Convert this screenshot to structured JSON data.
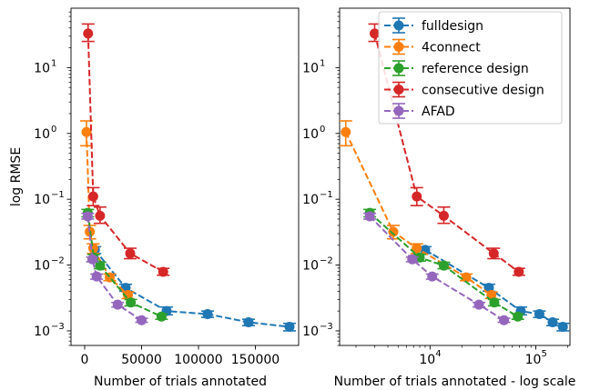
{
  "chart_data": [
    {
      "type": "line",
      "xscale": "linear",
      "yscale": "log",
      "xlabel": "Number of trials annotated",
      "ylabel": "log RMSE",
      "xlim": [
        -12000,
        188000
      ],
      "ylim": [
        0.0006,
        80
      ],
      "xticks": [
        0,
        50000,
        100000,
        150000
      ],
      "xtick_labels": [
        "0",
        "50000",
        "100000",
        "150000"
      ],
      "yticks": [
        0.001,
        0.01,
        0.1,
        1,
        10
      ],
      "ytick_labels": [
        "10",
        "10",
        "10",
        "10",
        "10"
      ],
      "ytick_exponents": [
        "−3",
        "−2",
        "−1",
        "0",
        "1"
      ],
      "grid": false,
      "legend": "none",
      "series_ref": "shared"
    },
    {
      "type": "line",
      "xscale": "log",
      "yscale": "log",
      "xlabel": "Number of trials annotated - log scale",
      "ylabel": "",
      "xlim": [
        1400,
        210000
      ],
      "ylim": [
        0.0006,
        80
      ],
      "xticks": [
        10000,
        100000
      ],
      "xtick_labels": [
        "10",
        "10"
      ],
      "xtick_exponents": [
        "4",
        "5"
      ],
      "yticks": [
        0.001,
        0.01,
        0.1,
        1,
        10
      ],
      "ytick_labels": [
        "10",
        "10",
        "10",
        "10",
        "10"
      ],
      "ytick_exponents": [
        "−3",
        "−2",
        "−1",
        "0",
        "1"
      ],
      "grid": false,
      "legend": "top-right",
      "series_ref": "shared"
    }
  ],
  "series": [
    {
      "name": "fulldesign",
      "color": "#1f77b4",
      "points": [
        {
          "x": 9000,
          "y": 0.017,
          "lo": 0.015,
          "hi": 0.019
        },
        {
          "x": 36000,
          "y": 0.0045,
          "lo": 0.004,
          "hi": 0.0051
        },
        {
          "x": 72000,
          "y": 0.002,
          "lo": 0.00175,
          "hi": 0.0023
        },
        {
          "x": 108000,
          "y": 0.0018,
          "lo": 0.0016,
          "hi": 0.002
        },
        {
          "x": 144000,
          "y": 0.00135,
          "lo": 0.0012,
          "hi": 0.0015
        },
        {
          "x": 180000,
          "y": 0.00115,
          "lo": 0.001,
          "hi": 0.0013
        }
      ]
    },
    {
      "name": "4connect",
      "color": "#ff7f0e",
      "points": [
        {
          "x": 1600,
          "y": 1.05,
          "lo": 0.65,
          "hi": 1.55
        },
        {
          "x": 4500,
          "y": 0.032,
          "lo": 0.025,
          "hi": 0.04
        },
        {
          "x": 7500,
          "y": 0.018,
          "lo": 0.015,
          "hi": 0.021
        },
        {
          "x": 22000,
          "y": 0.0065,
          "lo": 0.0058,
          "hi": 0.0073
        },
        {
          "x": 38000,
          "y": 0.0035,
          "lo": 0.0031,
          "hi": 0.0039
        }
      ]
    },
    {
      "name": "reference design",
      "color": "#2ca02c",
      "points": [
        {
          "x": 2700,
          "y": 0.062,
          "lo": 0.054,
          "hi": 0.07
        },
        {
          "x": 8000,
          "y": 0.013,
          "lo": 0.0115,
          "hi": 0.0145
        },
        {
          "x": 13500,
          "y": 0.0098,
          "lo": 0.0088,
          "hi": 0.011
        },
        {
          "x": 40500,
          "y": 0.0027,
          "lo": 0.0024,
          "hi": 0.003
        },
        {
          "x": 67500,
          "y": 0.00165,
          "lo": 0.0015,
          "hi": 0.0018
        }
      ]
    },
    {
      "name": "consecutive design",
      "color": "#d62728",
      "points": [
        {
          "x": 3000,
          "y": 33,
          "lo": 25,
          "hi": 46
        },
        {
          "x": 7500,
          "y": 0.11,
          "lo": 0.08,
          "hi": 0.15
        },
        {
          "x": 13500,
          "y": 0.056,
          "lo": 0.043,
          "hi": 0.076
        },
        {
          "x": 40000,
          "y": 0.015,
          "lo": 0.0125,
          "hi": 0.018
        },
        {
          "x": 69000,
          "y": 0.0079,
          "lo": 0.007,
          "hi": 0.0089
        }
      ]
    },
    {
      "name": "AFAD",
      "color": "#9467bd",
      "points": [
        {
          "x": 2700,
          "y": 0.055,
          "lo": 0.05,
          "hi": 0.061
        },
        {
          "x": 6800,
          "y": 0.0122,
          "lo": 0.0112,
          "hi": 0.0132
        },
        {
          "x": 10500,
          "y": 0.0067,
          "lo": 0.0061,
          "hi": 0.0073
        },
        {
          "x": 29000,
          "y": 0.0025,
          "lo": 0.0023,
          "hi": 0.0027
        },
        {
          "x": 50000,
          "y": 0.00145,
          "lo": 0.00135,
          "hi": 0.00155
        }
      ]
    }
  ]
}
